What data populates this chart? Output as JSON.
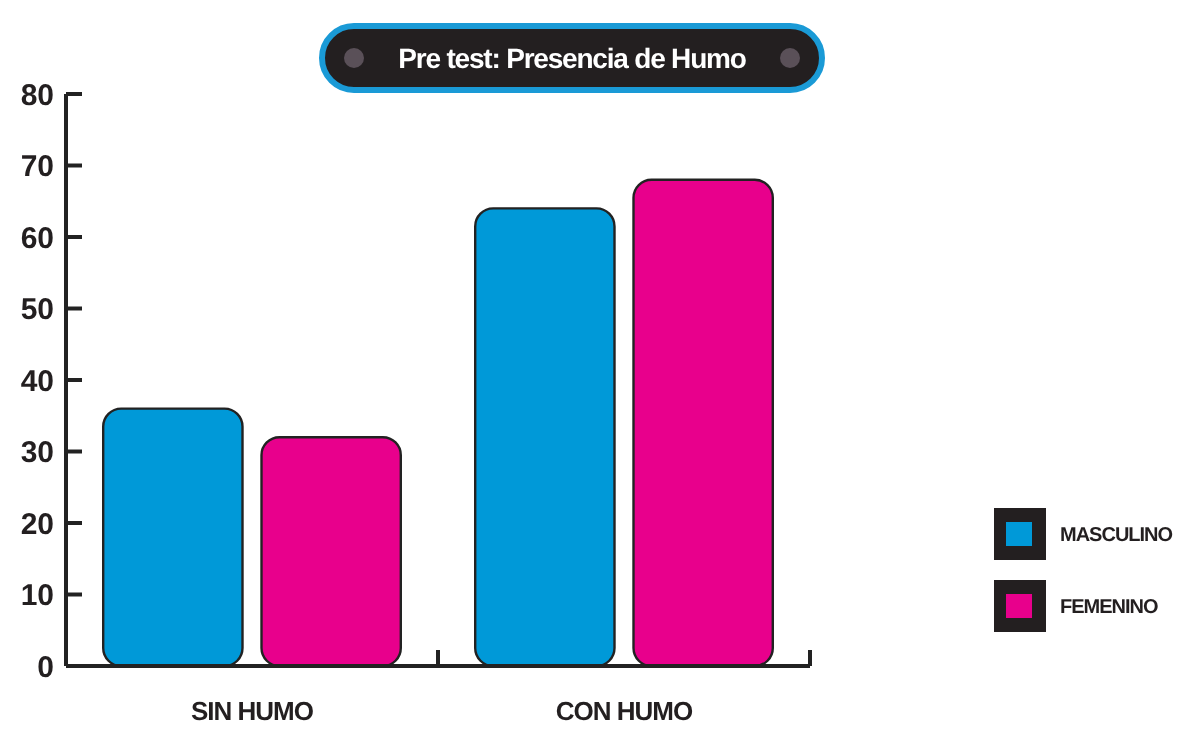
{
  "chart_data": {
    "type": "bar",
    "title": "Pre test: Presencia de Humo",
    "categories": [
      "SIN HUMO",
      "CON HUMO"
    ],
    "series": [
      {
        "name": "MASCULINO",
        "color": "#0099d8",
        "values": [
          36,
          64
        ]
      },
      {
        "name": "FEMENINO",
        "color": "#e8008c",
        "values": [
          32,
          68
        ]
      }
    ],
    "ylim": [
      0,
      80
    ],
    "yticks": [
      0,
      10,
      20,
      30,
      40,
      50,
      60,
      70,
      80
    ],
    "grid": false,
    "legend": "right"
  }
}
